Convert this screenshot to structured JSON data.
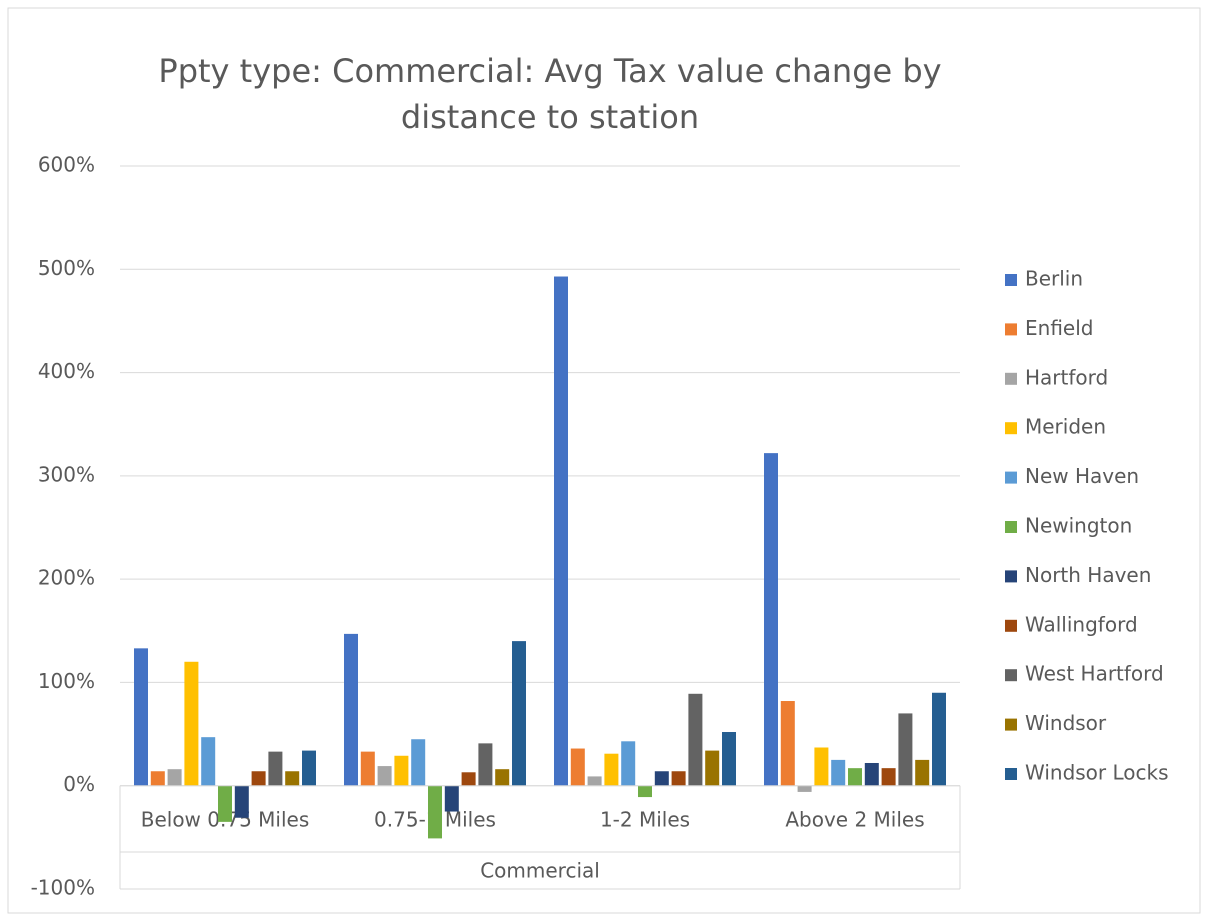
{
  "chart_data": {
    "type": "bar",
    "title": "Ppty type: Commercial: Avg Tax value change by distance to station",
    "categories": [
      "Below 0.75 Miles",
      "0.75-1 Miles",
      "1-2 Miles",
      "Above 2 Miles"
    ],
    "x_group_label": "Commercial",
    "series": [
      {
        "name": "Berlin",
        "color": "#4472c4",
        "values": [
          133,
          147,
          493,
          322
        ]
      },
      {
        "name": "Enfield",
        "color": "#ed7d31",
        "values": [
          14,
          33,
          36,
          82
        ]
      },
      {
        "name": "Hartford",
        "color": "#a5a5a5",
        "values": [
          16,
          19,
          9,
          -6
        ]
      },
      {
        "name": "Meriden",
        "color": "#ffc000",
        "values": [
          120,
          29,
          31,
          37
        ]
      },
      {
        "name": "New Haven",
        "color": "#5b9bd5",
        "values": [
          47,
          45,
          43,
          25
        ]
      },
      {
        "name": "Newington",
        "color": "#70ad47",
        "values": [
          -35,
          -51,
          -11,
          17
        ]
      },
      {
        "name": "North Haven",
        "color": "#264478",
        "values": [
          -31,
          -25,
          14,
          22
        ]
      },
      {
        "name": "Wallingford",
        "color": "#9e480e",
        "values": [
          14,
          13,
          14,
          17
        ]
      },
      {
        "name": "West Hartford",
        "color": "#636363",
        "values": [
          33,
          41,
          89,
          70
        ]
      },
      {
        "name": "Windsor",
        "color": "#997300",
        "values": [
          14,
          16,
          34,
          25
        ]
      },
      {
        "name": "Windsor Locks",
        "color": "#255e91",
        "values": [
          34,
          140,
          52,
          90
        ]
      }
    ],
    "ylim": [
      -100,
      600
    ],
    "yticks": [
      {
        "value": -100,
        "label": "-100%"
      },
      {
        "value": 0,
        "label": "0%"
      },
      {
        "value": 100,
        "label": "100%"
      },
      {
        "value": 200,
        "label": "200%"
      },
      {
        "value": 300,
        "label": "300%"
      },
      {
        "value": 400,
        "label": "400%"
      },
      {
        "value": 500,
        "label": "500%"
      },
      {
        "value": 600,
        "label": "600%"
      }
    ],
    "grid": true,
    "legend": "right"
  }
}
